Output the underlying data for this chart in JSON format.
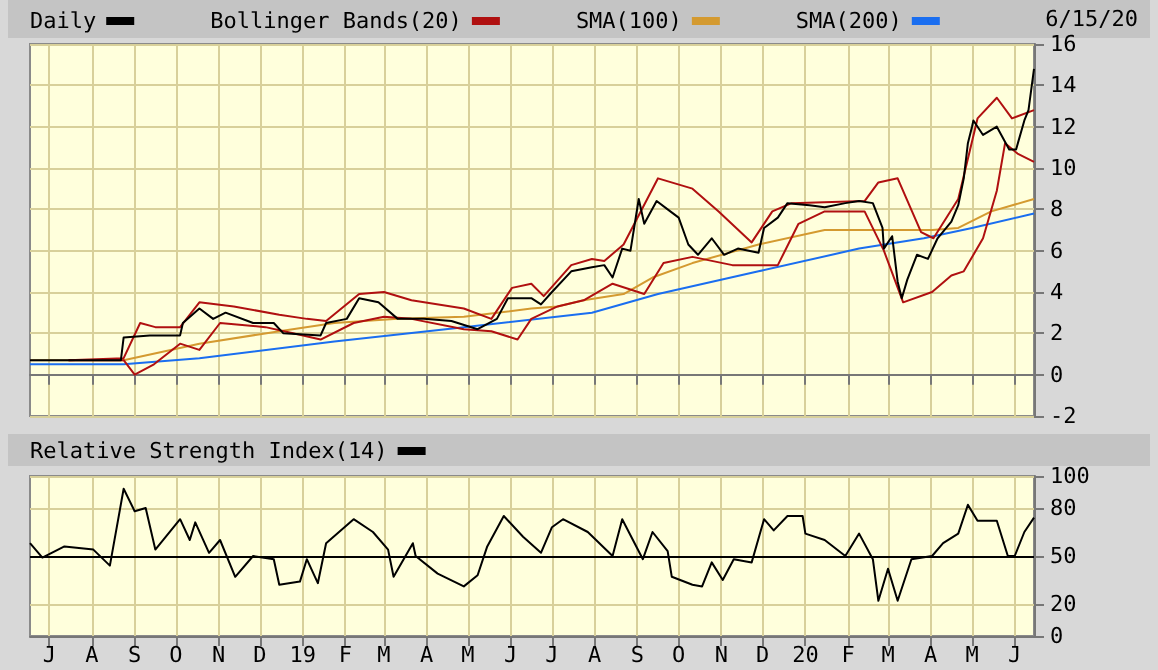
{
  "chart_data": [
    {
      "type": "line",
      "annotations": [
        "6/15/20"
      ],
      "legend": "top",
      "grid": true,
      "tick_labels": "y",
      "xlim": [
        "2018-06-17",
        "2020-06-15"
      ],
      "ylim": [
        -2,
        16
      ],
      "yticks": [
        -2,
        0,
        2,
        4,
        6,
        8,
        10,
        12,
        14,
        16
      ],
      "xticks": [
        {
          "value": "2018-07-01",
          "label": null
        },
        {
          "value": "2018-08-01",
          "label": null
        },
        {
          "value": "2018-09-01",
          "label": null
        },
        {
          "value": "2018-10-01",
          "label": null
        },
        {
          "value": "2018-11-01",
          "label": null
        },
        {
          "value": "2018-12-01",
          "label": null
        },
        {
          "value": "2019-01-01",
          "label": null
        },
        {
          "value": "2019-02-01",
          "label": null
        },
        {
          "value": "2019-03-01",
          "label": null
        },
        {
          "value": "2019-04-01",
          "label": null
        },
        {
          "value": "2019-05-01",
          "label": null
        },
        {
          "value": "2019-06-01",
          "label": null
        },
        {
          "value": "2019-07-01",
          "label": null
        },
        {
          "value": "2019-08-01",
          "label": null
        },
        {
          "value": "2019-09-01",
          "label": null
        },
        {
          "value": "2019-10-01",
          "label": null
        },
        {
          "value": "2019-11-01",
          "label": null
        },
        {
          "value": "2019-12-01",
          "label": null
        },
        {
          "value": "2020-01-01",
          "label": null
        },
        {
          "value": "2020-02-01",
          "label": null
        },
        {
          "value": "2020-03-01",
          "label": null
        },
        {
          "value": "2020-04-01",
          "label": null
        },
        {
          "value": "2020-05-01",
          "label": null
        },
        {
          "value": "2020-06-01",
          "label": null
        }
      ],
      "series": [
        {
          "name": "Daily",
          "color": "#000000",
          "x": [
            "2018-06-17",
            "2018-08-22",
            "2018-08-24",
            "2018-09-12",
            "2018-10-04",
            "2018-10-06",
            "2018-10-18",
            "2018-10-28",
            "2018-11-06",
            "2018-11-26",
            "2018-12-11",
            "2018-12-18",
            "2019-01-14",
            "2019-01-18",
            "2019-02-02",
            "2019-02-11",
            "2019-02-25",
            "2019-03-11",
            "2019-03-30",
            "2019-04-19",
            "2019-05-08",
            "2019-05-22",
            "2019-05-30",
            "2019-06-16",
            "2019-06-23",
            "2019-07-01",
            "2019-07-15",
            "2019-07-30",
            "2019-08-08",
            "2019-08-14",
            "2019-08-21",
            "2019-08-27",
            "2019-09-02",
            "2019-09-06",
            "2019-09-15",
            "2019-09-23",
            "2019-10-01",
            "2019-10-08",
            "2019-10-15",
            "2019-10-25",
            "2019-11-03",
            "2019-11-13",
            "2019-11-28",
            "2019-12-02",
            "2019-12-12",
            "2019-12-19",
            "2020-01-04",
            "2020-01-15",
            "2020-01-30",
            "2020-02-09",
            "2020-02-19",
            "2020-02-26",
            "2020-02-27",
            "2020-03-04",
            "2020-03-08",
            "2020-03-11",
            "2020-03-15",
            "2020-03-22",
            "2020-03-30",
            "2020-04-06",
            "2020-04-16",
            "2020-04-21",
            "2020-04-25",
            "2020-04-28",
            "2020-05-01",
            "2020-05-02",
            "2020-05-09",
            "2020-05-19",
            "2020-05-28",
            "2020-06-02",
            "2020-06-08",
            "2020-06-11",
            "2020-06-15"
          ],
          "values": [
            0.7,
            0.7,
            1.8,
            1.9,
            1.9,
            2.5,
            3.2,
            2.7,
            3.0,
            2.5,
            2.5,
            2.0,
            1.9,
            2.5,
            2.7,
            3.7,
            3.5,
            2.7,
            2.7,
            2.6,
            2.2,
            2.7,
            3.7,
            3.7,
            3.4,
            4.0,
            5.0,
            5.2,
            5.3,
            4.7,
            6.1,
            6.0,
            8.5,
            7.3,
            8.4,
            8.0,
            7.6,
            6.3,
            5.8,
            6.6,
            5.8,
            6.1,
            5.9,
            7.1,
            7.6,
            8.3,
            8.2,
            8.1,
            8.3,
            8.4,
            8.3,
            7.1,
            6.1,
            6.7,
            4.5,
            3.7,
            4.6,
            5.8,
            5.6,
            6.6,
            7.4,
            8.2,
            9.5,
            11.2,
            12.0,
            12.3,
            11.6,
            12.0,
            10.9,
            10.9,
            12.3,
            12.8,
            14.8
          ]
        },
        {
          "name": "Bollinger Bands(20)",
          "color": "#b01010",
          "x": [
            "2018-07-15",
            "2018-08-24",
            "2018-09-05",
            "2018-09-16",
            "2018-10-04",
            "2018-10-18",
            "2018-11-12",
            "2018-12-15",
            "2019-01-04",
            "2019-01-18",
            "2019-02-11",
            "2019-03-01",
            "2019-03-21",
            "2019-04-28",
            "2019-05-18",
            "2019-06-02",
            "2019-06-16",
            "2019-06-25",
            "2019-07-15",
            "2019-07-30",
            "2019-08-08",
            "2019-08-22",
            "2019-09-16",
            "2019-10-11",
            "2019-10-30",
            "2019-11-23",
            "2019-12-08",
            "2019-12-22",
            "2020-02-13",
            "2020-02-23",
            "2020-03-08",
            "2020-03-25",
            "2020-04-03",
            "2020-04-21",
            "2020-05-05",
            "2020-05-19",
            "2020-05-30",
            "2020-06-15"
          ],
          "values": [
            0.7,
            0.8,
            2.5,
            2.3,
            2.3,
            3.5,
            3.3,
            2.9,
            2.7,
            2.6,
            3.9,
            4.0,
            3.6,
            3.2,
            2.7,
            4.2,
            4.4,
            3.8,
            5.3,
            5.6,
            5.5,
            6.3,
            9.5,
            9.0,
            7.9,
            6.4,
            7.9,
            8.3,
            8.4,
            9.3,
            9.5,
            6.9,
            6.6,
            8.5,
            12.4,
            13.4,
            12.4,
            12.8
          ]
        },
        {
          "color": "#b01010",
          "x": [
            "2018-07-15",
            "2018-08-24",
            "2018-09-01",
            "2018-09-15",
            "2018-10-04",
            "2018-10-18",
            "2018-11-02",
            "2018-12-05",
            "2018-12-25",
            "2019-01-14",
            "2019-02-07",
            "2019-03-01",
            "2019-03-21",
            "2019-04-28",
            "2019-05-18",
            "2019-06-06",
            "2019-06-16",
            "2019-07-05",
            "2019-07-24",
            "2019-08-14",
            "2019-09-06",
            "2019-09-20",
            "2019-10-11",
            "2019-11-09",
            "2019-12-12",
            "2019-12-27",
            "2020-01-15",
            "2020-02-13",
            "2020-02-27",
            "2020-03-12",
            "2020-04-02",
            "2020-04-16",
            "2020-04-25",
            "2020-05-09",
            "2020-05-19",
            "2020-05-25",
            "2020-06-03",
            "2020-06-15"
          ],
          "values": [
            0.7,
            0.7,
            0.0,
            0.5,
            1.5,
            1.2,
            2.5,
            2.3,
            2.0,
            1.7,
            2.5,
            2.8,
            2.7,
            2.2,
            2.1,
            1.7,
            2.7,
            3.3,
            3.6,
            4.4,
            3.9,
            5.4,
            5.7,
            5.3,
            5.3,
            7.3,
            7.9,
            7.9,
            6.0,
            3.5,
            4.0,
            4.8,
            5.0,
            6.6,
            8.9,
            11.2,
            10.7,
            10.3
          ]
        },
        {
          "name": "SMA(100)",
          "color": "#d49a30",
          "x": [
            "2018-06-17",
            "2018-08-24",
            "2018-10-18",
            "2018-12-15",
            "2019-01-24",
            "2019-03-11",
            "2019-04-28",
            "2019-06-16",
            "2019-07-05",
            "2019-07-24",
            "2019-08-22",
            "2019-09-12",
            "2019-10-11",
            "2019-11-28",
            "2020-01-15",
            "2020-03-04",
            "2020-04-02",
            "2020-04-21",
            "2020-05-15",
            "2020-06-15"
          ],
          "values": [
            0.7,
            0.7,
            1.5,
            2.1,
            2.5,
            2.7,
            2.8,
            3.2,
            3.3,
            3.6,
            3.9,
            4.7,
            5.4,
            6.3,
            7.0,
            7.0,
            7.0,
            7.1,
            7.9,
            8.5
          ]
        },
        {
          "name": "SMA(200)",
          "color": "#1a6ef0",
          "x": [
            "2018-06-17",
            "2018-08-24",
            "2018-10-18",
            "2019-01-24",
            "2019-04-28",
            "2019-07-30",
            "2019-09-16",
            "2019-11-28",
            "2020-02-09",
            "2020-03-27",
            "2020-05-01",
            "2020-06-15"
          ],
          "values": [
            0.5,
            0.5,
            0.8,
            1.6,
            2.3,
            3.0,
            3.9,
            5.0,
            6.1,
            6.6,
            7.1,
            7.8
          ]
        }
      ]
    },
    {
      "type": "line",
      "legend": "top",
      "grid": true,
      "xlim": [
        "2018-06-17",
        "2020-06-15"
      ],
      "ylim": [
        0,
        100
      ],
      "yticks": [
        0,
        20,
        50,
        80,
        100
      ],
      "xticks": [
        {
          "value": "2018-07-01",
          "label": "J"
        },
        {
          "value": "2018-08-01",
          "label": "A"
        },
        {
          "value": "2018-09-01",
          "label": "S"
        },
        {
          "value": "2018-10-01",
          "label": "O"
        },
        {
          "value": "2018-11-01",
          "label": "N"
        },
        {
          "value": "2018-12-01",
          "label": "D"
        },
        {
          "value": "2019-01-01",
          "label": "19"
        },
        {
          "value": "2019-02-01",
          "label": "F"
        },
        {
          "value": "2019-03-01",
          "label": "M"
        },
        {
          "value": "2019-04-01",
          "label": "A"
        },
        {
          "value": "2019-05-01",
          "label": "M"
        },
        {
          "value": "2019-06-01",
          "label": "J"
        },
        {
          "value": "2019-07-01",
          "label": "J"
        },
        {
          "value": "2019-08-01",
          "label": "A"
        },
        {
          "value": "2019-09-01",
          "label": "S"
        },
        {
          "value": "2019-10-01",
          "label": "O"
        },
        {
          "value": "2019-11-01",
          "label": "N"
        },
        {
          "value": "2019-12-01",
          "label": "D"
        },
        {
          "value": "2020-01-01",
          "label": "20"
        },
        {
          "value": "2020-02-01",
          "label": "F"
        },
        {
          "value": "2020-03-01",
          "label": "M"
        },
        {
          "value": "2020-04-01",
          "label": "A"
        },
        {
          "value": "2020-05-01",
          "label": "M"
        },
        {
          "value": "2020-06-01",
          "label": "J"
        }
      ],
      "ref_lines": [
        {
          "axis": "y",
          "value": 50,
          "color": "#000000"
        }
      ],
      "series": [
        {
          "name": "Relative Strength Index(14)",
          "color": "#000000",
          "x": [
            "2018-06-17",
            "2018-06-26",
            "2018-07-12",
            "2018-08-02",
            "2018-08-14",
            "2018-08-24",
            "2018-09-01",
            "2018-09-09",
            "2018-09-16",
            "2018-10-04",
            "2018-10-11",
            "2018-10-15",
            "2018-10-25",
            "2018-11-02",
            "2018-11-13",
            "2018-11-26",
            "2018-12-11",
            "2018-12-15",
            "2018-12-30",
            "2019-01-04",
            "2019-01-12",
            "2019-01-18",
            "2019-02-07",
            "2019-02-21",
            "2019-03-04",
            "2019-03-08",
            "2019-03-22",
            "2019-03-24",
            "2019-04-09",
            "2019-04-28",
            "2019-05-08",
            "2019-05-15",
            "2019-05-27",
            "2019-06-10",
            "2019-06-23",
            "2019-07-01",
            "2019-07-09",
            "2019-07-27",
            "2019-08-14",
            "2019-08-21",
            "2019-09-05",
            "2019-09-12",
            "2019-09-23",
            "2019-09-26",
            "2019-10-11",
            "2019-10-18",
            "2019-10-25",
            "2019-11-02",
            "2019-11-10",
            "2019-11-23",
            "2019-12-02",
            "2019-12-09",
            "2019-12-19",
            "2019-12-30",
            "2020-01-01",
            "2020-01-15",
            "2020-01-30",
            "2020-02-09",
            "2020-02-19",
            "2020-02-23",
            "2020-03-01",
            "2020-03-08",
            "2020-03-18",
            "2020-04-02",
            "2020-04-10",
            "2020-04-21",
            "2020-04-28",
            "2020-05-05",
            "2020-05-19",
            "2020-05-27",
            "2020-06-01",
            "2020-06-08",
            "2020-06-15"
          ],
          "values": [
            58,
            49,
            56,
            54,
            44,
            92,
            78,
            80,
            54,
            73,
            60,
            71,
            52,
            60,
            37,
            50,
            48,
            32,
            34,
            48,
            33,
            58,
            73,
            65,
            54,
            37,
            58,
            50,
            39,
            31,
            38,
            56,
            75,
            62,
            52,
            68,
            73,
            65,
            50,
            73,
            48,
            65,
            53,
            37,
            32,
            31,
            46,
            35,
            48,
            46,
            73,
            66,
            75,
            75,
            64,
            60,
            50,
            64,
            48,
            22,
            42,
            22,
            48,
            50,
            58,
            64,
            82,
            72,
            72,
            50,
            50,
            65,
            74
          ]
        }
      ]
    }
  ]
}
